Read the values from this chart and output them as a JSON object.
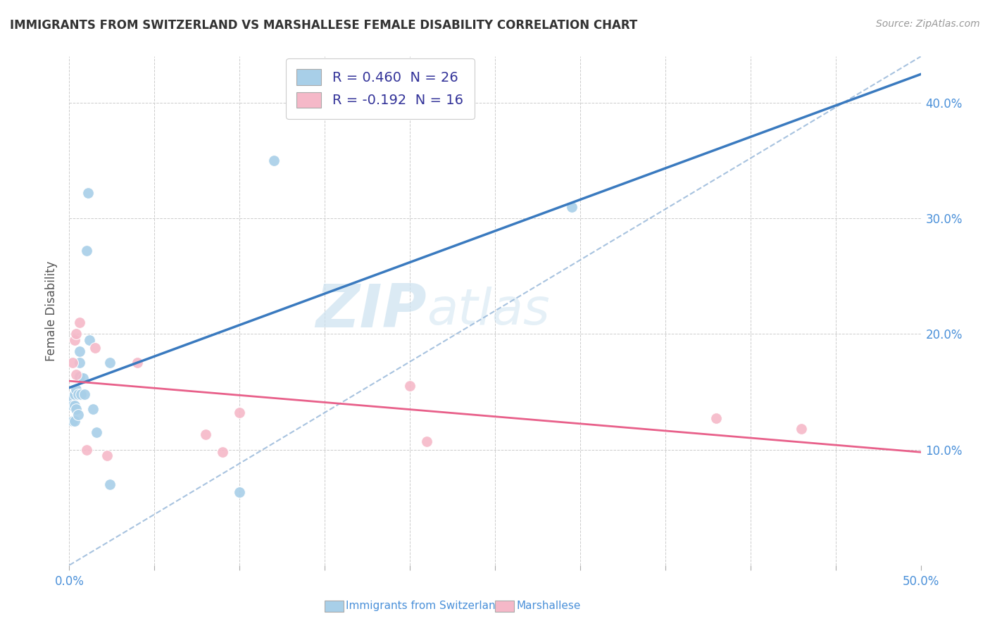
{
  "title": "IMMIGRANTS FROM SWITZERLAND VS MARSHALLESE FEMALE DISABILITY CORRELATION CHART",
  "source": "Source: ZipAtlas.com",
  "ylabel": "Female Disability",
  "xlim": [
    0.0,
    0.5
  ],
  "ylim": [
    0.0,
    0.44
  ],
  "swiss_R": 0.46,
  "swiss_N": 26,
  "marsh_R": -0.192,
  "marsh_N": 16,
  "swiss_color": "#a8cfe8",
  "marsh_color": "#f5b8c8",
  "swiss_line_color": "#3a7abf",
  "marsh_line_color": "#e8608a",
  "ref_line_color": "#92b4d8",
  "background_color": "#ffffff",
  "watermark_zip": "ZIP",
  "watermark_atlas": "atlas",
  "swiss_points_x": [
    0.002,
    0.002,
    0.002,
    0.003,
    0.003,
    0.003,
    0.004,
    0.004,
    0.005,
    0.005,
    0.006,
    0.006,
    0.006,
    0.007,
    0.008,
    0.009,
    0.01,
    0.011,
    0.012,
    0.014,
    0.016,
    0.024,
    0.024,
    0.1,
    0.12,
    0.295
  ],
  "swiss_points_y": [
    0.145,
    0.138,
    0.125,
    0.148,
    0.138,
    0.125,
    0.152,
    0.135,
    0.148,
    0.13,
    0.185,
    0.175,
    0.163,
    0.148,
    0.162,
    0.148,
    0.272,
    0.322,
    0.195,
    0.135,
    0.115,
    0.175,
    0.07,
    0.063,
    0.35,
    0.31
  ],
  "marsh_points_x": [
    0.002,
    0.003,
    0.004,
    0.004,
    0.006,
    0.01,
    0.015,
    0.022,
    0.04,
    0.08,
    0.09,
    0.1,
    0.2,
    0.21,
    0.38,
    0.43
  ],
  "marsh_points_y": [
    0.175,
    0.195,
    0.2,
    0.165,
    0.21,
    0.1,
    0.188,
    0.095,
    0.175,
    0.113,
    0.098,
    0.132,
    0.155,
    0.107,
    0.127,
    0.118
  ],
  "ytick_positions": [
    0.0,
    0.1,
    0.2,
    0.3,
    0.4
  ],
  "ytick_labels_right": [
    "",
    "10.0%",
    "20.0%",
    "30.0%",
    "40.0%"
  ],
  "xtick_positions": [
    0.0,
    0.05,
    0.1,
    0.15,
    0.2,
    0.25,
    0.3,
    0.35,
    0.4,
    0.45,
    0.5
  ],
  "xtick_labels": [
    "0.0%",
    "",
    "",
    "",
    "",
    "",
    "",
    "",
    "",
    "",
    "50.0%"
  ],
  "tick_color": "#4a90d9",
  "title_color": "#333333",
  "ylabel_color": "#555555"
}
